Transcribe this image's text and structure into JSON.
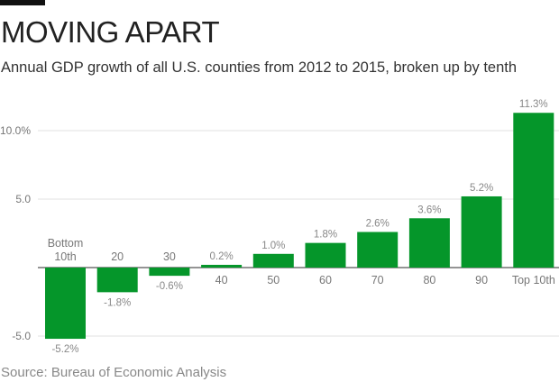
{
  "header": {
    "title": "MOVING APART",
    "subtitle": "Annual GDP growth of all U.S. counties from 2012 to 2015, broken up by tenth"
  },
  "footer": {
    "source": "Source: Bureau of Economic Analysis"
  },
  "chart_data": {
    "type": "bar",
    "title": "MOVING APART",
    "subtitle": "Annual GDP growth of all U.S. counties from 2012 to 2015, broken up by tenth",
    "xlabel": "",
    "ylabel": "",
    "categories": [
      [
        "Bottom",
        "10th"
      ],
      [
        "20"
      ],
      [
        "30"
      ],
      [
        "40"
      ],
      [
        "50"
      ],
      [
        "60"
      ],
      [
        "70"
      ],
      [
        "80"
      ],
      [
        "90"
      ],
      [
        "Top 10th"
      ]
    ],
    "values": [
      -5.2,
      -1.8,
      -0.6,
      0.2,
      1.0,
      1.8,
      2.6,
      3.6,
      5.2,
      11.3
    ],
    "data_labels": [
      "-5.2%",
      "-1.8%",
      "-0.6%",
      "0.2%",
      "1.0%",
      "1.8%",
      "2.6%",
      "3.6%",
      "5.2%",
      "11.3%"
    ],
    "yticks": [
      -5,
      5,
      10
    ],
    "ytick_labels": [
      "-5.0",
      "5.0",
      "10.0%"
    ],
    "ylim": [
      -5.5,
      12
    ],
    "grid": true,
    "bar_color": "#05962a",
    "source": "Source: Bureau of Economic Analysis"
  }
}
